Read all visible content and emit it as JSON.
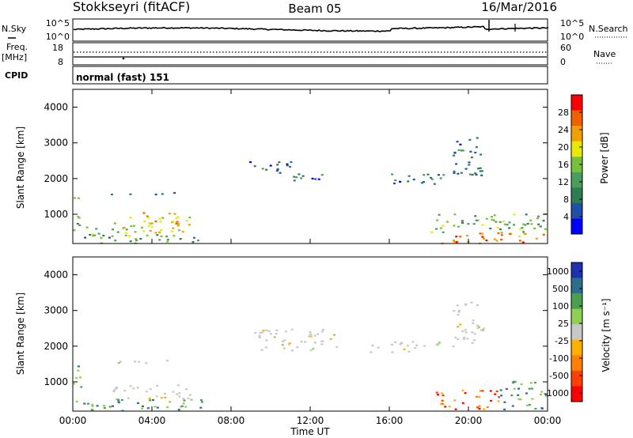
{
  "header": {
    "station": "Stokkseyri (fitACF)",
    "beam": "Beam 05",
    "date": "16/Mar/2016"
  },
  "panels": {
    "nsky": {
      "left_label": "N.Sky",
      "right_label": "N.Search",
      "left_ticks": [
        "10^5",
        "10^0"
      ],
      "right_ticks": [
        "10^5",
        "10^0"
      ]
    },
    "freq": {
      "left_label_1": "Freq.",
      "left_label_2": "[MHz]",
      "right_label": "Nave",
      "left_ticks": [
        "18",
        "8"
      ],
      "right_ticks": [
        "60",
        "0"
      ]
    },
    "cpid": {
      "left_label": "CPID",
      "mode_text": "normal (fast) 151"
    }
  },
  "colors": {
    "scatter_gray": "#c8c8c8",
    "power_scale": [
      "#0000ff",
      "#1f4fa6",
      "#2e7d50",
      "#4a9e5c",
      "#78c03c",
      "#e8e800",
      "#f0a000",
      "#f06000",
      "#ff0000"
    ],
    "velocity_scale": [
      "#ff0000",
      "#ff4000",
      "#ff8000",
      "#ffb000",
      "#c8c8c8",
      "#8fd050",
      "#4aa050",
      "#2e6e8c",
      "#2030b0"
    ]
  },
  "chart_data": [
    {
      "type": "heatmap",
      "name": "power",
      "ylabel": "Slant Range [km]",
      "yticks": [
        "1000",
        "2000",
        "3000",
        "4000"
      ],
      "ylim": [
        180,
        4500
      ],
      "colorbar_label": "Power [dB]",
      "colorbar_ticks": [
        "4",
        "8",
        "12",
        "16",
        "20",
        "24",
        "28"
      ],
      "colorbar_range": [
        0,
        32
      ],
      "regions": [
        {
          "t0": 0.0,
          "t1": 0.4,
          "r0": 400,
          "r1": 1500,
          "level": 14
        },
        {
          "t0": 0.5,
          "t1": 2.5,
          "r0": 200,
          "r1": 450,
          "level": 10
        },
        {
          "t0": 0.6,
          "t1": 3.0,
          "r0": 400,
          "r1": 700,
          "level": 16
        },
        {
          "t0": 2.8,
          "t1": 6.8,
          "r0": 200,
          "r1": 450,
          "level": 12
        },
        {
          "t0": 2.0,
          "t1": 6.0,
          "r0": 500,
          "r1": 950,
          "level": 20
        },
        {
          "t0": 3.5,
          "t1": 5.5,
          "r0": 700,
          "r1": 1100,
          "level": 22
        },
        {
          "t0": 1.6,
          "t1": 3.0,
          "r0": 1550,
          "r1": 1650,
          "level": 6
        },
        {
          "t0": 3.4,
          "t1": 5.2,
          "r0": 1550,
          "r1": 1650,
          "level": 8
        },
        {
          "t0": 8.9,
          "t1": 11.0,
          "r0": 2100,
          "r1": 2500,
          "level": 6
        },
        {
          "t0": 11.0,
          "t1": 13.3,
          "r0": 1900,
          "r1": 2150,
          "level": 7
        },
        {
          "t0": 15.0,
          "t1": 18.5,
          "r0": 1850,
          "r1": 1950,
          "level": 6
        },
        {
          "t0": 16.0,
          "t1": 19.2,
          "r0": 1950,
          "r1": 2150,
          "level": 10
        },
        {
          "t0": 19.2,
          "t1": 20.8,
          "r0": 2100,
          "r1": 3300,
          "level": 8
        },
        {
          "t0": 18.2,
          "t1": 24.0,
          "r0": 200,
          "r1": 500,
          "level": 26
        },
        {
          "t0": 18.0,
          "t1": 24.0,
          "r0": 500,
          "r1": 1050,
          "level": 14
        }
      ]
    },
    {
      "type": "heatmap",
      "name": "velocity",
      "ylabel": "Slant Range [km]",
      "yticks": [
        "1000",
        "2000",
        "3000",
        "4000"
      ],
      "ylim": [
        180,
        4500
      ],
      "xlabel": "Time UT",
      "xticks": [
        "00:00",
        "04:00",
        "08:00",
        "12:00",
        "16:00",
        "20:00",
        "00:00"
      ],
      "xlim": [
        0,
        24
      ],
      "colorbar_label": "Velocity [m s⁻¹]",
      "colorbar_ticks": [
        "1000",
        "500",
        "100",
        "25",
        "-25",
        "-100",
        "-500",
        "-1000"
      ],
      "regions": [
        {
          "t0": 0.0,
          "t1": 0.4,
          "r0": 400,
          "r1": 1500,
          "level": 100
        },
        {
          "t0": 0.4,
          "t1": 6.8,
          "r0": 200,
          "r1": 550,
          "level": 150
        },
        {
          "t0": 2.0,
          "t1": 6.0,
          "r0": 550,
          "r1": 950,
          "level": 0
        },
        {
          "t0": 1.6,
          "t1": 5.2,
          "r0": 1550,
          "r1": 1650,
          "level": 0
        },
        {
          "t0": 8.9,
          "t1": 13.3,
          "r0": 1900,
          "r1": 2500,
          "level": 0
        },
        {
          "t0": 15.0,
          "t1": 19.2,
          "r0": 1850,
          "r1": 2150,
          "level": 0
        },
        {
          "t0": 19.2,
          "t1": 20.8,
          "r0": 2100,
          "r1": 3300,
          "level": 0
        },
        {
          "t0": 18.2,
          "t1": 21.5,
          "r0": 250,
          "r1": 800,
          "level": -300
        },
        {
          "t0": 21.5,
          "t1": 24.0,
          "r0": 250,
          "r1": 1050,
          "level": 50
        }
      ]
    }
  ]
}
